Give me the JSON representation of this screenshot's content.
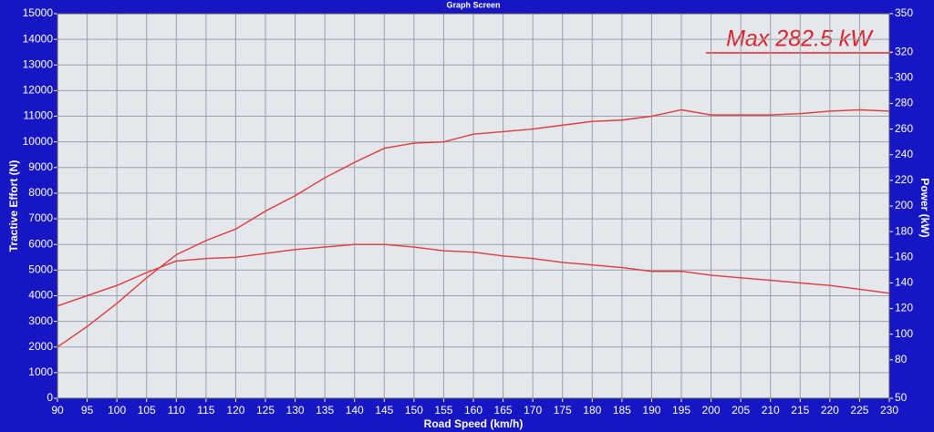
{
  "chart_data": {
    "type": "line",
    "title": "Graph Screen",
    "x_label": "Road Speed (km/h)",
    "y_label": "Tractive Effort (N)",
    "y2_label": "Power (kW)",
    "annotation": "Max 282.5 kW",
    "annotation_color": "#e0202a",
    "x": [
      90,
      95,
      100,
      105,
      110,
      115,
      120,
      125,
      130,
      135,
      140,
      145,
      150,
      155,
      160,
      165,
      170,
      175,
      180,
      185,
      190,
      195,
      200,
      205,
      210,
      215,
      220,
      225,
      230
    ],
    "series": [
      {
        "color": "#e03a3a",
        "values": [
          3600,
          4000,
          4400,
          4900,
          5350,
          5450,
          5500,
          5650,
          5800,
          5900,
          6000,
          6000,
          5900,
          5750,
          5700,
          5550,
          5450,
          5300,
          5200,
          5100,
          4950,
          4950,
          4800,
          4700,
          4600,
          4500,
          4400,
          4250,
          4100
        ]
      },
      {
        "color": "#e03a3a",
        "axis": "y2",
        "values": [
          90,
          106,
          124,
          144,
          162,
          173,
          182,
          196,
          208,
          222,
          234,
          245,
          249,
          250,
          256,
          258,
          260,
          263,
          266,
          267,
          270,
          275,
          271,
          271,
          271,
          272,
          274,
          275,
          274
        ]
      }
    ],
    "xlim": [
      90,
      230
    ],
    "xticks": [
      90,
      95,
      100,
      105,
      110,
      115,
      120,
      125,
      130,
      135,
      140,
      145,
      150,
      155,
      160,
      165,
      170,
      175,
      180,
      185,
      190,
      195,
      200,
      205,
      210,
      215,
      220,
      225,
      230
    ],
    "ylim": [
      0,
      15000
    ],
    "yticks": [
      0,
      1000,
      2000,
      3000,
      4000,
      5000,
      6000,
      7000,
      8000,
      9000,
      10000,
      11000,
      12000,
      13000,
      14000,
      15000
    ],
    "y2lim": [
      50,
      350
    ],
    "y2ticks": [
      50,
      80,
      100,
      120,
      140,
      160,
      180,
      200,
      220,
      240,
      260,
      280,
      300,
      320,
      350
    ],
    "grid": true
  }
}
